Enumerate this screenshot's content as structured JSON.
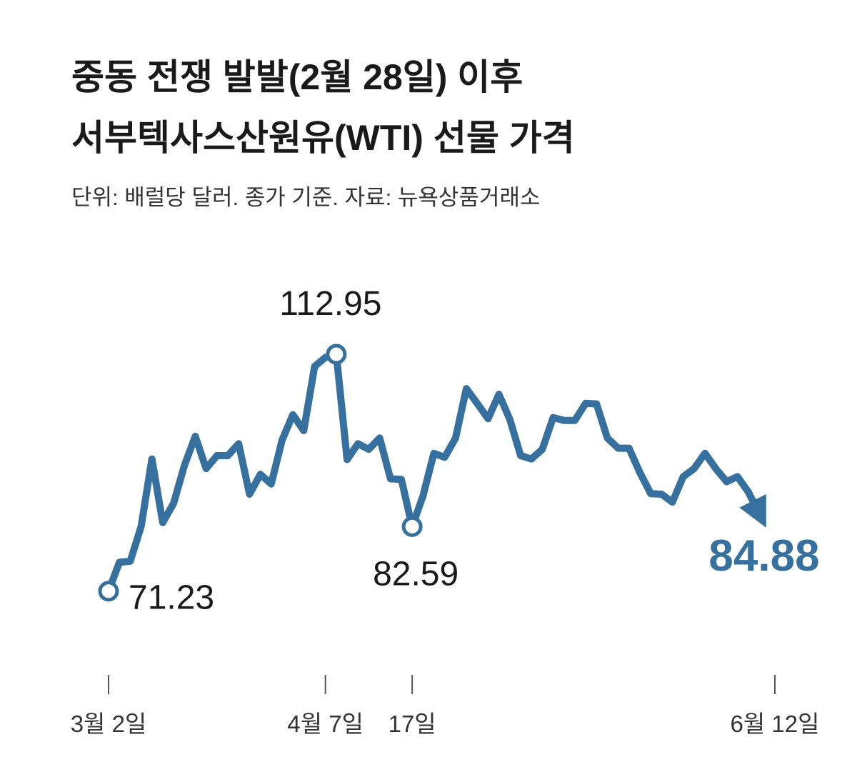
{
  "chart_data": {
    "type": "line",
    "title": [
      "중동 전쟁 발발(2월 28일) 이후",
      "서부텍사스산원유(WTI) 선물 가격"
    ],
    "subtitle": "단위: 배럴당 달러. 종가 기준. 자료: 뉴욕상품거래소",
    "categories": [
      "3월 2일",
      null,
      null,
      null,
      null,
      null,
      null,
      null,
      null,
      null,
      null,
      null,
      null,
      null,
      null,
      null,
      null,
      null,
      null,
      null,
      "4월 7일",
      null,
      null,
      null,
      null,
      null,
      null,
      null,
      "17일",
      null,
      null,
      null,
      null,
      null,
      null,
      null,
      null,
      null,
      null,
      null,
      null,
      null,
      null,
      null,
      null,
      null,
      null,
      null,
      null,
      null,
      null,
      null,
      null,
      null,
      null,
      null,
      null,
      null,
      null,
      null,
      "6월 12일"
    ],
    "series": [
      {
        "name": "WTI",
        "color": "#36709f",
        "values": [
          71.23,
          76.3,
          76.5,
          82.6,
          94.5,
          83.3,
          86.7,
          93.4,
          98.5,
          92.8,
          95.1,
          95.1,
          97.2,
          88.3,
          91.8,
          90.1,
          97.8,
          102.3,
          99.5,
          110.8,
          112.4,
          112.95,
          94.4,
          97.2,
          96.2,
          98.2,
          91.0,
          90.9,
          82.59,
          88.0,
          95.5,
          94.8,
          98.2,
          106.9,
          104.3,
          101.6,
          105.9,
          101.5,
          95.1,
          94.5,
          96.2,
          101.8,
          101.3,
          101.3,
          104.3,
          104.2,
          98.2,
          96.4,
          96.4,
          92.1,
          88.4,
          88.3,
          86.9,
          91.4,
          92.8,
          95.5,
          92.8,
          90.5,
          91.4,
          88.7,
          84.88
        ],
        "value_labels": [
          "71.23",
          null,
          null,
          null,
          null,
          null,
          null,
          null,
          null,
          null,
          null,
          null,
          null,
          null,
          null,
          null,
          null,
          null,
          null,
          null,
          null,
          "112.95",
          null,
          null,
          null,
          null,
          null,
          null,
          "82.59",
          null,
          null,
          null,
          null,
          null,
          null,
          null,
          null,
          null,
          null,
          null,
          null,
          null,
          null,
          null,
          null,
          null,
          null,
          null,
          null,
          null,
          null,
          null,
          null,
          null,
          null,
          null,
          null,
          null,
          null,
          null,
          "84.88"
        ]
      }
    ],
    "ylim": [
      60,
      120
    ]
  }
}
